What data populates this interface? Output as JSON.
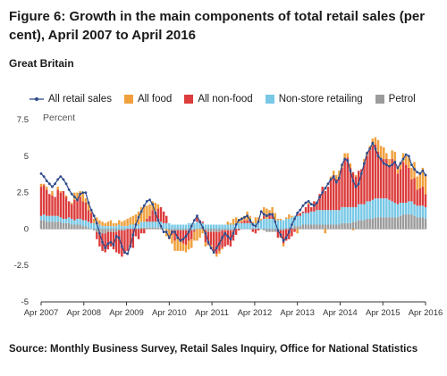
{
  "title": "Figure 6: Growth in the main components of total retail sales (per cent), April 2007 to April 2016",
  "subtitle": "Great Britain",
  "unit_label": "Percent",
  "source": "Source: Monthly Business Survey, Retail Sales Inquiry, Office for National Statistics",
  "legend": [
    {
      "name": "All retail sales",
      "color": "#2e4a8a",
      "kind": "line-marker"
    },
    {
      "name": "All food",
      "color": "#f0a03c",
      "kind": "bar"
    },
    {
      "name": "All non-food",
      "color": "#dc3c3c",
      "kind": "bar"
    },
    {
      "name": "Non-store retailing",
      "color": "#78c8e6",
      "kind": "bar"
    },
    {
      "name": "Petrol",
      "color": "#9b9b9b",
      "kind": "bar"
    }
  ],
  "chart_data": {
    "type": "bar",
    "stacked": true,
    "title": "Figure 6: Growth in the main components of total retail sales (per cent), April 2007 to April 2016",
    "ylabel": "Percent",
    "ylim": [
      -5,
      7.5
    ],
    "yticks": [
      "7.5",
      "5",
      "2.5",
      "0",
      "-2.5",
      "-5"
    ],
    "ytick_values": [
      7.5,
      5,
      2.5,
      0,
      -2.5,
      -5
    ],
    "xticks": [
      "Apr 2007",
      "Apr 2008",
      "Apr 2009",
      "Apr 2010",
      "Apr 2011",
      "Apr 2012",
      "Apr 2013",
      "Apr 2014",
      "Apr 2015",
      "Apr 2016"
    ],
    "x_start": "Apr 2007",
    "x_end": "Apr 2016",
    "grid": false,
    "legend_position": "top",
    "total_series_name": "All retail sales",
    "total": [
      3.8,
      3.6,
      3.3,
      3.1,
      2.9,
      3.1,
      3.4,
      3.6,
      3.4,
      3.1,
      2.7,
      2.4,
      2.2,
      2.0,
      2.4,
      2.5,
      2.5,
      1.8,
      1.3,
      0.9,
      0.4,
      -0.3,
      -0.9,
      -1.3,
      -1.0,
      -0.9,
      -1.1,
      -0.5,
      -0.6,
      -1.2,
      -1.6,
      -1.7,
      -1.2,
      -0.4,
      0.3,
      0.8,
      1.2,
      1.6,
      1.9,
      2.0,
      1.7,
      1.1,
      0.6,
      0.2,
      -0.2,
      -0.2,
      -0.6,
      -0.2,
      -0.2,
      -0.6,
      -0.8,
      -0.7,
      -0.5,
      -0.2,
      0.2,
      0.6,
      0.9,
      0.5,
      0.1,
      -0.3,
      -0.9,
      -1.3,
      -1.6,
      -1.3,
      -1.0,
      -0.6,
      -0.3,
      -0.5,
      -0.7,
      -0.3,
      0.3,
      0.6,
      0.7,
      0.8,
      0.9,
      0.6,
      0.3,
      0.2,
      0.5,
      1.2,
      1.0,
      0.9,
      1.0,
      1.0,
      0.5,
      -0.1,
      -0.4,
      -0.8,
      -0.6,
      -0.2,
      0.3,
      0.7,
      1.1,
      1.3,
      1.6,
      1.8,
      1.9,
      1.7,
      1.6,
      1.8,
      2.2,
      2.5,
      2.8,
      3.1,
      3.4,
      3.6,
      3.2,
      3.5,
      4.4,
      4.8,
      4.7,
      4.0,
      3.3,
      2.9,
      3.1,
      3.8,
      4.5,
      5.2,
      5.5,
      5.9,
      5.5,
      5.0,
      4.8,
      4.5,
      4.4,
      4.3,
      4.4,
      4.6,
      4.2,
      4.5,
      4.8,
      5.1,
      5.0,
      4.4,
      4.1,
      3.9,
      3.8,
      4.0,
      3.7
    ],
    "series": [
      {
        "name": "All food",
        "values": [
          0.2,
          0.1,
          0.2,
          0.0,
          0.3,
          0.0,
          0.2,
          0.1,
          0.0,
          0.1,
          0.0,
          0.1,
          0.5,
          0.5,
          0.4,
          0.6,
          0.3,
          0.6,
          0.2,
          0.3,
          0.5,
          0.3,
          0.3,
          0.2,
          0.3,
          0.4,
          0.2,
          0.2,
          0.3,
          0.3,
          0.4,
          0.5,
          0.5,
          0.6,
          0.7,
          0.9,
          1.0,
          1.1,
          0.9,
          0.8,
          0.6,
          0.7,
          0.3,
          0.0,
          0.0,
          -0.5,
          -0.6,
          -0.6,
          -0.7,
          -0.9,
          -0.7,
          -0.5,
          -0.5,
          -0.6,
          -0.6,
          -0.6,
          -0.8,
          -0.6,
          -0.3,
          -0.3,
          0.0,
          -0.3,
          -0.2,
          -0.2,
          -0.2,
          -0.1,
          0.0,
          0.2,
          0.1,
          0.4,
          0.4,
          0.3,
          0.3,
          0.3,
          0.6,
          0.3,
          0.1,
          0.4,
          0.3,
          0.1,
          0.6,
          0.7,
          0.2,
          0.5,
          0.5,
          0.1,
          0.1,
          -0.2,
          0.1,
          0.3,
          0.1,
          0.0,
          -0.3,
          0.0,
          0.0,
          0.0,
          0.1,
          0.0,
          0.0,
          0.0,
          0.0,
          0.0,
          -0.3,
          0.0,
          0.2,
          0.3,
          0.3,
          0.4,
          0.2,
          0.4,
          0.3,
          0.3,
          -0.1,
          0.1,
          0.0,
          0.0,
          0.2,
          0.3,
          0.3,
          0.5,
          0.5,
          0.8,
          0.9,
          0.8,
          0.4,
          0.5,
          0.6,
          0.7,
          0.5,
          0.5,
          0.6,
          0.6,
          0.7,
          0.8,
          1.1,
          0.9,
          1.1,
          1.3,
          1.3
        ]
      },
      {
        "name": "All non-food",
        "values": [
          2.0,
          2.0,
          1.8,
          1.5,
          1.4,
          1.3,
          1.8,
          1.7,
          1.9,
          1.5,
          1.1,
          1.0,
          1.4,
          1.3,
          1.5,
          1.3,
          1.2,
          0.8,
          0.7,
          0.0,
          -0.5,
          -0.9,
          -1.2,
          -1.3,
          -1.2,
          -1.0,
          -1.2,
          -1.4,
          -1.6,
          -1.8,
          -1.6,
          -1.5,
          -1.2,
          -1.3,
          -0.5,
          -0.7,
          -0.3,
          -0.3,
          0.2,
          0.4,
          0.8,
          0.6,
          0.9,
          1.0,
          0.8,
          0.5,
          0.0,
          -0.3,
          -0.7,
          -0.5,
          -0.7,
          -0.9,
          -1.0,
          -0.7,
          -0.6,
          -0.1,
          0.3,
          0.2,
          0.1,
          -0.8,
          -0.9,
          -0.9,
          -1.3,
          -1.5,
          -1.3,
          -1.2,
          -1.1,
          -1.0,
          -1.1,
          -0.7,
          -0.4,
          -0.1,
          0.1,
          0.2,
          0.2,
          0.2,
          -0.2,
          -0.3,
          -0.1,
          0.0,
          0.2,
          0.0,
          0.4,
          0.3,
          0.0,
          -0.5,
          -0.5,
          -0.9,
          -0.8,
          -0.7,
          -0.5,
          -0.2,
          0.1,
          0.2,
          0.1,
          0.4,
          0.6,
          0.3,
          0.7,
          0.5,
          1.1,
          1.6,
          1.3,
          1.6,
          2.1,
          2.4,
          2.1,
          2.3,
          2.7,
          3.3,
          3.4,
          2.7,
          2.4,
          2.1,
          2.3,
          2.4,
          2.9,
          3.1,
          3.5,
          3.7,
          3.7,
          3.2,
          2.7,
          2.7,
          2.7,
          2.3,
          2.9,
          2.8,
          2.1,
          2.3,
          2.8,
          2.6,
          2.3,
          1.5,
          1.8,
          1.1,
          1.2,
          1.3,
          0.9
        ]
      },
      {
        "name": "Non-store retailing",
        "values": [
          0.3,
          0.4,
          0.4,
          0.4,
          0.4,
          0.4,
          0.4,
          0.3,
          0.3,
          0.3,
          0.4,
          0.4,
          0.3,
          0.4,
          0.4,
          0.4,
          0.4,
          0.4,
          0.4,
          0.4,
          0.3,
          0.3,
          0.2,
          0.2,
          0.2,
          0.2,
          0.2,
          0.2,
          0.3,
          0.2,
          0.2,
          0.2,
          0.3,
          0.3,
          0.3,
          0.3,
          0.4,
          0.4,
          0.4,
          0.4,
          0.4,
          0.4,
          0.4,
          0.4,
          0.4,
          0.4,
          0.4,
          0.3,
          0.3,
          0.3,
          0.3,
          0.3,
          0.3,
          0.4,
          0.4,
          0.4,
          0.5,
          0.4,
          0.4,
          0.3,
          0.3,
          0.3,
          0.3,
          0.3,
          0.3,
          0.3,
          0.3,
          0.3,
          0.3,
          0.3,
          0.4,
          0.4,
          0.4,
          0.4,
          0.4,
          0.4,
          0.4,
          0.4,
          0.5,
          0.6,
          0.7,
          0.7,
          0.7,
          0.7,
          0.6,
          0.6,
          0.6,
          0.6,
          0.7,
          0.7,
          0.7,
          0.7,
          0.7,
          0.7,
          0.8,
          0.8,
          0.8,
          0.9,
          0.9,
          1.0,
          1.0,
          1.0,
          1.0,
          1.0,
          1.0,
          1.0,
          1.0,
          1.0,
          1.1,
          1.1,
          1.1,
          1.1,
          1.0,
          1.0,
          1.1,
          1.1,
          1.1,
          1.2,
          1.2,
          1.3,
          1.3,
          1.3,
          1.3,
          1.3,
          1.3,
          1.2,
          1.1,
          1.0,
          0.9,
          0.9,
          0.8,
          0.8,
          0.9,
          0.9,
          0.8,
          0.8,
          0.8,
          0.8,
          0.8
        ]
      },
      {
        "name": "Petrol",
        "values": [
          0.6,
          0.6,
          0.5,
          0.5,
          0.5,
          0.5,
          0.5,
          0.5,
          0.4,
          0.4,
          0.4,
          0.3,
          0.3,
          0.3,
          0.3,
          0.2,
          0.2,
          0.1,
          0.0,
          -0.1,
          -0.2,
          -0.3,
          -0.3,
          -0.3,
          -0.2,
          -0.2,
          -0.2,
          -0.2,
          -0.1,
          -0.1,
          -0.1,
          0.0,
          0.0,
          0.0,
          0.0,
          0.0,
          0.1,
          0.1,
          0.1,
          0.1,
          0.1,
          0.1,
          0.1,
          0.1,
          0.0,
          0.0,
          -0.1,
          -0.1,
          -0.1,
          -0.1,
          -0.1,
          -0.1,
          -0.1,
          -0.1,
          -0.1,
          -0.1,
          0.0,
          0.0,
          0.0,
          -0.1,
          -0.2,
          -0.2,
          -0.2,
          -0.2,
          -0.2,
          -0.1,
          -0.1,
          -0.1,
          -0.1,
          -0.1,
          0.0,
          0.0,
          0.0,
          0.0,
          0.0,
          0.0,
          0.0,
          0.0,
          0.0,
          0.0,
          -0.1,
          -0.2,
          -0.2,
          -0.2,
          -0.2,
          -0.1,
          -0.1,
          -0.1,
          0.0,
          0.0,
          0.1,
          0.2,
          0.2,
          0.2,
          0.3,
          0.3,
          0.3,
          0.3,
          0.3,
          0.3,
          0.3,
          0.3,
          0.3,
          0.3,
          0.3,
          0.3,
          0.3,
          0.3,
          0.4,
          0.4,
          0.4,
          0.4,
          0.5,
          0.5,
          0.6,
          0.6,
          0.6,
          0.7,
          0.7,
          0.7,
          0.8,
          0.8,
          0.8,
          0.8,
          0.8,
          0.8,
          0.8,
          0.8,
          0.8,
          0.9,
          1.0,
          1.0,
          1.0,
          1.0,
          0.9,
          0.8,
          0.8,
          0.8,
          0.7
        ]
      }
    ]
  }
}
